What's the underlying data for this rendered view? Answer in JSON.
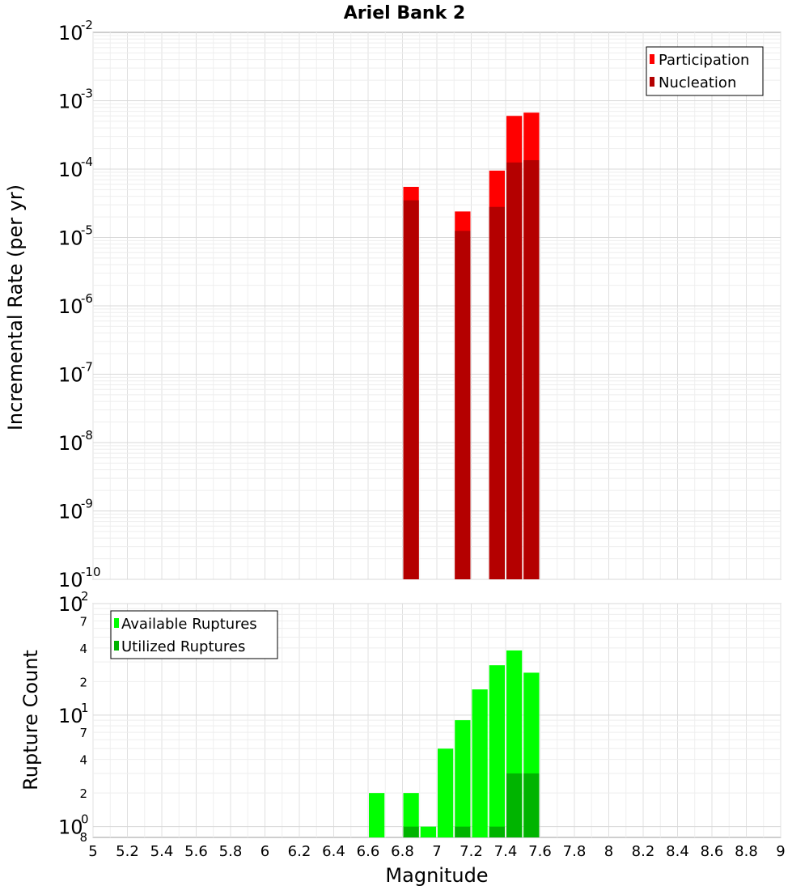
{
  "chart_data": [
    {
      "type": "bar",
      "title": "Ariel Bank 2",
      "ylabel": "Incremental Rate (per yr)",
      "yscale": "log",
      "ylim": [
        1e-10,
        0.01
      ],
      "ytick_labels": [
        {
          "base": "10",
          "exp": "-10"
        },
        {
          "base": "10",
          "exp": "-9"
        },
        {
          "base": "10",
          "exp": "-8"
        },
        {
          "base": "10",
          "exp": "-7"
        },
        {
          "base": "10",
          "exp": "-6"
        },
        {
          "base": "10",
          "exp": "-5"
        },
        {
          "base": "10",
          "exp": "-4"
        },
        {
          "base": "10",
          "exp": "-3"
        },
        {
          "base": "10",
          "exp": "-2"
        }
      ],
      "grid": true,
      "legend_position": "top-right",
      "x": [
        6.85,
        7.15,
        7.35,
        7.45,
        7.55
      ],
      "series": [
        {
          "name": "Participation",
          "color": "#ff0000",
          "values": [
            5.5e-05,
            2.4e-05,
            9.5e-05,
            0.0006,
            0.00067
          ]
        },
        {
          "name": "Nucleation",
          "color": "#b40000",
          "values": [
            3.5e-05,
            1.25e-05,
            2.8e-05,
            0.000125,
            0.000135
          ]
        }
      ]
    },
    {
      "type": "bar",
      "ylabel": "Rupture Count",
      "xlabel": "Magnitude",
      "yscale": "log",
      "ylim": [
        0.8,
        100
      ],
      "ytick_labels": [
        {
          "base": "10",
          "exp": "0"
        },
        {
          "base": "10",
          "exp": "1"
        },
        {
          "base": "10",
          "exp": "2"
        }
      ],
      "minor_tick_labels": [
        "8",
        "2",
        "4",
        "7",
        "2",
        "4",
        "7"
      ],
      "grid": true,
      "legend_position": "top-left",
      "xlim": [
        5,
        9
      ],
      "xtick_labels": [
        "5",
        "5.2",
        "5.4",
        "5.6",
        "5.8",
        "6",
        "6.2",
        "6.4",
        "6.6",
        "6.8",
        "7",
        "7.2",
        "7.4",
        "7.6",
        "7.8",
        "8",
        "8.2",
        "8.4",
        "8.6",
        "8.8",
        "9"
      ],
      "x": [
        6.65,
        6.85,
        6.95,
        7.05,
        7.15,
        7.25,
        7.35,
        7.45,
        7.55
      ],
      "series": [
        {
          "name": "Available Ruptures",
          "color": "#00ff00",
          "values": [
            2,
            2,
            1,
            5,
            9,
            17,
            28,
            38,
            24
          ]
        },
        {
          "name": "Utilized Ruptures",
          "color": "#00b400",
          "values": [
            0,
            1,
            0,
            0,
            1,
            0,
            1,
            3,
            3
          ]
        }
      ]
    }
  ]
}
